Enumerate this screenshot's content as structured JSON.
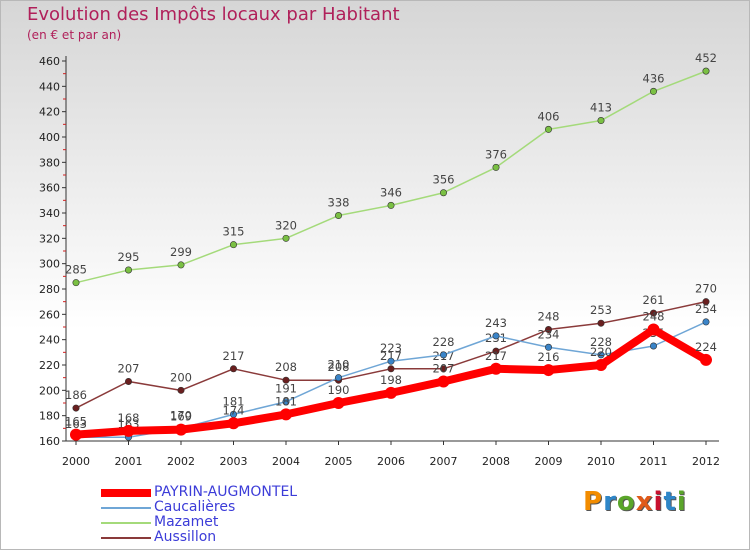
{
  "page": {
    "title": "Evolution des Impôts locaux par Habitant",
    "subtitle": "(en € et par an)"
  },
  "logo": {
    "text": "Proxiti",
    "letter_colors": [
      "#f28c00",
      "#2e86c8",
      "#5aa52a",
      "#e05a1a",
      "#c8102e",
      "#2e86c8",
      "#5aa52a"
    ]
  },
  "chart_data": {
    "type": "line",
    "title": "Evolution des Impôts locaux par Habitant",
    "subtitle": "(en € et par an)",
    "xlabel": "",
    "ylabel": "",
    "x": [
      2000,
      2001,
      2002,
      2003,
      2004,
      2005,
      2006,
      2007,
      2008,
      2009,
      2010,
      2011,
      2012
    ],
    "ylim": [
      160,
      460
    ],
    "yticks": [
      160,
      180,
      200,
      220,
      240,
      260,
      280,
      300,
      320,
      340,
      360,
      380,
      400,
      420,
      440,
      460
    ],
    "grid": false,
    "legend_position": "bottom-left",
    "series": [
      {
        "name": "PAYRIN-AUGMONTEL",
        "color": "#ff0000",
        "marker_color": "#ff0000",
        "width": 8,
        "values": [
          165,
          168,
          169,
          174,
          181,
          190,
          198,
          207,
          217,
          216,
          220,
          248,
          224
        ]
      },
      {
        "name": "Caucalières",
        "color": "#6fa6d6",
        "marker_color": "#3a84c8",
        "width": 1.5,
        "values": [
          163,
          163,
          170,
          181,
          191,
          210,
          223,
          228,
          243,
          234,
          228,
          235,
          254
        ]
      },
      {
        "name": "Mazamet",
        "color": "#a4da7a",
        "marker_color": "#7ac043",
        "width": 1.5,
        "values": [
          285,
          295,
          299,
          315,
          320,
          338,
          346,
          356,
          376,
          406,
          413,
          436,
          452
        ]
      },
      {
        "name": "Aussillon",
        "color": "#8a3a3a",
        "marker_color": "#6a1f1f",
        "width": 1.5,
        "values": [
          186,
          207,
          200,
          217,
          208,
          208,
          217,
          217,
          231,
          248,
          253,
          261,
          270
        ]
      }
    ]
  }
}
